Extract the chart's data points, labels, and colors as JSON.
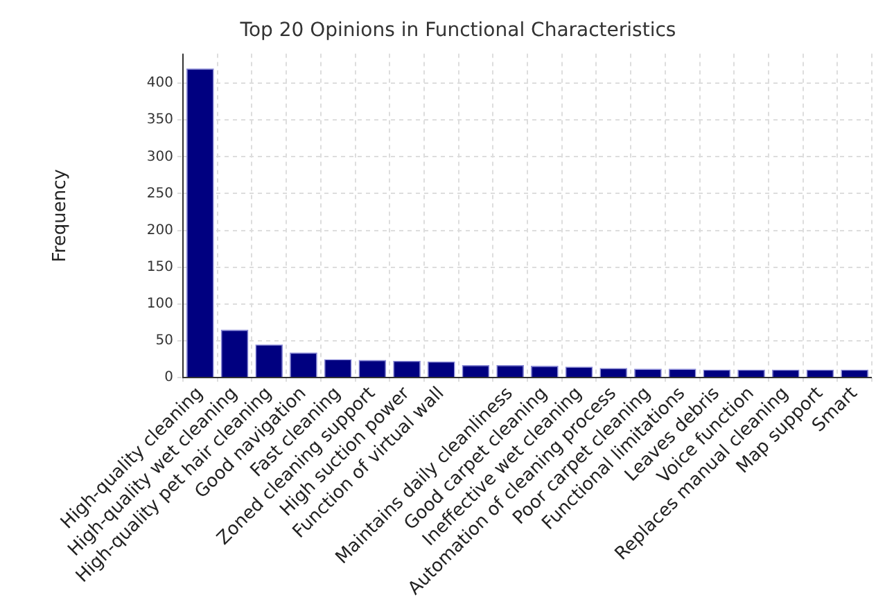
{
  "chart_data": {
    "type": "bar",
    "title": "Top 20 Opinions in Functional Characteristics",
    "ylabel": "Frequency",
    "categories": [
      "High-quality cleaning",
      "High-quality wet cleaning",
      "High-quality pet hair cleaning",
      "Good navigation",
      "Fast cleaning",
      "Zoned cleaning support",
      "High suction power",
      "Function of virtual wall",
      null,
      "Maintains daily cleanliness",
      "Good carpet cleaning",
      "Ineffective wet cleaning",
      "Automation of cleaning process",
      "Poor carpet cleaning",
      "Functional limitations",
      "Leaves debris",
      "Voice function",
      "Replaces manual cleaning",
      "Map support",
      "Smart"
    ],
    "values": [
      420,
      65,
      45,
      34,
      25,
      24,
      23,
      22,
      17,
      17,
      16,
      15,
      13,
      12,
      12,
      11,
      11,
      11,
      11,
      11
    ],
    "color": "#000080",
    "ylim": [
      0,
      440
    ],
    "yticks": [
      0,
      50,
      100,
      150,
      200,
      250,
      300,
      350,
      400
    ],
    "grid": true,
    "legend": false
  }
}
